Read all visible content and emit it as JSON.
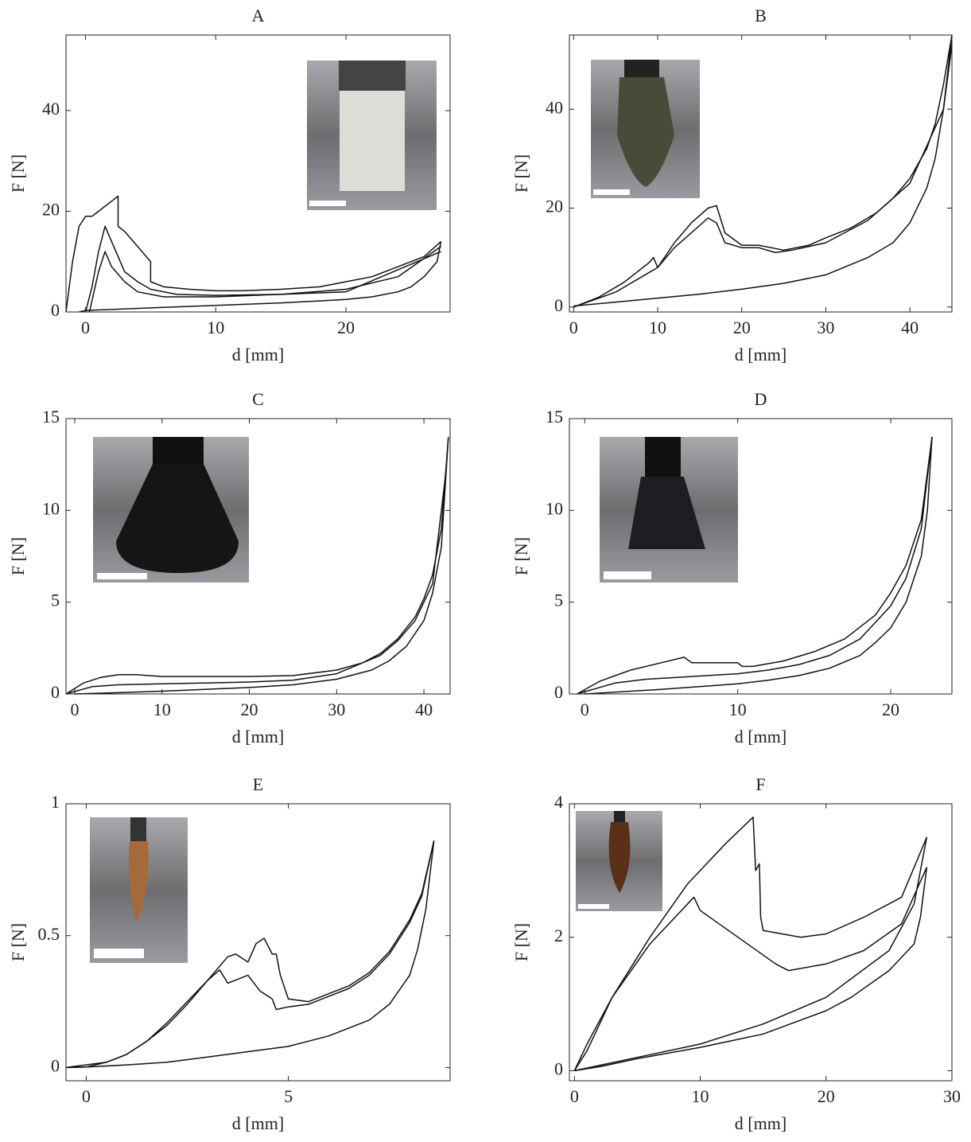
{
  "chart_data": [
    {
      "type": "line",
      "title": "A",
      "x_label": "d [mm]",
      "y_label": "F [N]",
      "color": "#111111",
      "xlim": [
        -1.5,
        28
      ],
      "ylim": [
        0,
        55
      ],
      "xticks": [
        0,
        10,
        20
      ],
      "yticks": [
        0,
        20,
        40
      ],
      "series": [
        {
          "x": [
            -1.5,
            -1,
            -0.5,
            0,
            0.5,
            1,
            2,
            2.5,
            2.5,
            3,
            4,
            5,
            5,
            6,
            8,
            10,
            12,
            15,
            18,
            20,
            22,
            24,
            26,
            27.3
          ],
          "values": [
            0,
            10,
            17,
            19,
            19,
            20,
            22,
            23,
            17,
            16,
            13,
            10,
            6,
            5,
            4.5,
            4.2,
            4.2,
            4.5,
            5,
            6,
            7,
            9,
            11,
            14
          ]
        },
        {
          "x": [
            27.3,
            27,
            26,
            25,
            24,
            22,
            20,
            18,
            15,
            10,
            5,
            0,
            -0.5
          ],
          "values": [
            14,
            10,
            7,
            5,
            4,
            3,
            2.5,
            2.2,
            1.8,
            1.3,
            0.8,
            0.3,
            0
          ]
        },
        {
          "x": [
            0,
            0.5,
            1,
            1.5,
            2,
            3,
            4,
            5,
            7,
            10,
            15,
            20,
            24,
            27.3
          ],
          "values": [
            0,
            5,
            12,
            17,
            14,
            8,
            6,
            4.5,
            3.5,
            3.3,
            3.5,
            4.5,
            7,
            13
          ]
        },
        {
          "x": [
            0.3,
            1,
            1.5,
            2,
            3,
            4,
            6,
            10,
            20,
            27.3
          ],
          "values": [
            0,
            8,
            12,
            9,
            6,
            4,
            3,
            3,
            4,
            12
          ]
        }
      ]
    },
    {
      "type": "line",
      "title": "B",
      "x_label": "d [mm]",
      "y_label": "F [N]",
      "color": "#111111",
      "xlim": [
        -0.5,
        45
      ],
      "ylim": [
        -1,
        55
      ],
      "xticks": [
        0,
        10,
        20,
        30,
        40
      ],
      "yticks": [
        0,
        20,
        40
      ],
      "series": [
        {
          "x": [
            0,
            3,
            6,
            9,
            9.5,
            10,
            12,
            14,
            16,
            17,
            18,
            20,
            22,
            25,
            28,
            30,
            33,
            36,
            38,
            40,
            42,
            43,
            44,
            45
          ],
          "values": [
            0,
            2,
            5,
            9,
            10,
            8,
            13,
            17,
            20,
            20.5,
            15,
            12.5,
            12.5,
            11.5,
            12.5,
            14,
            16,
            19,
            22,
            26,
            32,
            37,
            45,
            55
          ]
        },
        {
          "x": [
            0,
            5,
            9,
            10,
            12,
            14,
            16,
            17,
            18,
            20,
            22,
            24,
            26,
            30,
            35,
            40,
            44,
            45
          ],
          "values": [
            0,
            3,
            7,
            8,
            12,
            15,
            18,
            17,
            13,
            12,
            12,
            11,
            11.5,
            13,
            17.5,
            25,
            40,
            53
          ]
        },
        {
          "x": [
            45,
            44,
            43,
            42,
            40,
            38,
            35,
            30,
            25,
            20,
            15,
            10,
            5,
            0
          ],
          "values": [
            55,
            40,
            30,
            24,
            17,
            13,
            10,
            6.5,
            4.8,
            3.6,
            2.6,
            1.8,
            1,
            0.2
          ]
        }
      ]
    },
    {
      "type": "line",
      "title": "C",
      "x_label": "d [mm]",
      "y_label": "F [N]",
      "color": "#111111",
      "xlim": [
        -1,
        43
      ],
      "ylim": [
        0,
        15
      ],
      "xticks": [
        0,
        10,
        20,
        30,
        40
      ],
      "yticks": [
        0,
        5,
        10,
        15
      ],
      "series": [
        {
          "x": [
            -1,
            1,
            3,
            5,
            7,
            10,
            15,
            20,
            25,
            30,
            33,
            35,
            37,
            39,
            40,
            41,
            42,
            42.8
          ],
          "values": [
            0,
            0.6,
            0.9,
            1.05,
            1.05,
            0.95,
            0.95,
            0.95,
            1,
            1.3,
            1.7,
            2.2,
            3,
            4.2,
            5.2,
            6.5,
            9,
            14
          ]
        },
        {
          "x": [
            -1,
            2,
            5,
            10,
            15,
            20,
            25,
            30,
            35,
            37,
            39,
            41,
            42.5
          ],
          "values": [
            0,
            0.4,
            0.5,
            0.55,
            0.6,
            0.65,
            0.75,
            1.1,
            2.1,
            2.9,
            4,
            6,
            12
          ]
        },
        {
          "x": [
            42.8,
            42,
            41,
            40,
            38,
            36,
            34,
            30,
            25,
            20,
            10,
            5,
            0
          ],
          "values": [
            14,
            8,
            5.5,
            4,
            2.6,
            1.8,
            1.3,
            0.8,
            0.5,
            0.35,
            0.15,
            0.07,
            0
          ]
        }
      ]
    },
    {
      "type": "line",
      "title": "D",
      "x_label": "d [mm]",
      "y_label": "F [N]",
      "color": "#111111",
      "xlim": [
        -1,
        24
      ],
      "ylim": [
        0,
        15
      ],
      "xticks": [
        0,
        10,
        20
      ],
      "yticks": [
        0,
        5,
        10,
        15
      ],
      "series": [
        {
          "x": [
            -0.5,
            1,
            3,
            5,
            6.5,
            7,
            10,
            10.3,
            11,
            13,
            15,
            17,
            19,
            20,
            21,
            22,
            22.7
          ],
          "values": [
            0,
            0.7,
            1.3,
            1.7,
            2,
            1.7,
            1.7,
            1.5,
            1.5,
            1.8,
            2.3,
            3,
            4.3,
            5.5,
            7,
            9.5,
            14
          ]
        },
        {
          "x": [
            -0.5,
            2,
            4,
            6,
            8,
            10,
            12,
            14,
            16,
            18,
            20,
            21,
            22,
            22.7
          ],
          "values": [
            0,
            0.6,
            0.8,
            0.9,
            1,
            1.1,
            1.3,
            1.6,
            2.1,
            3,
            4.8,
            6.3,
            9,
            14
          ]
        },
        {
          "x": [
            22.7,
            22.4,
            22,
            21,
            20,
            19,
            18,
            16,
            14,
            12,
            10,
            5,
            0
          ],
          "values": [
            14,
            10,
            7.5,
            5,
            3.6,
            2.8,
            2.1,
            1.4,
            1,
            0.75,
            0.55,
            0.25,
            0
          ]
        }
      ]
    },
    {
      "type": "line",
      "title": "E",
      "x_label": "d [mm]",
      "y_label": "F [N]",
      "color": "#111111",
      "xlim": [
        -0.5,
        9
      ],
      "ylim": [
        -0.05,
        1
      ],
      "xticks": [
        0,
        5
      ],
      "yticks": [
        0,
        0.5,
        1
      ],
      "series": [
        {
          "x": [
            -0.5,
            0,
            0.5,
            1,
            1.5,
            2,
            2.5,
            3,
            3.5,
            3.7,
            4,
            4.2,
            4.4,
            4.6,
            4.7,
            4.8,
            5,
            5.5,
            6,
            6.5,
            7,
            7.5,
            8,
            8.3,
            8.6
          ],
          "values": [
            0,
            0.002,
            0.02,
            0.05,
            0.1,
            0.17,
            0.25,
            0.33,
            0.42,
            0.43,
            0.4,
            0.47,
            0.49,
            0.43,
            0.43,
            0.35,
            0.26,
            0.25,
            0.28,
            0.31,
            0.36,
            0.44,
            0.56,
            0.66,
            0.86
          ]
        },
        {
          "x": [
            -0.5,
            0.5,
            1,
            1.5,
            2,
            2.5,
            3,
            3.3,
            3.5,
            4,
            4.3,
            4.6,
            4.7,
            5,
            5.5,
            6,
            6.5,
            7,
            7.5,
            8,
            8.3,
            8.6
          ],
          "values": [
            0,
            0.02,
            0.05,
            0.1,
            0.16,
            0.24,
            0.33,
            0.37,
            0.32,
            0.35,
            0.29,
            0.26,
            0.22,
            0.23,
            0.24,
            0.27,
            0.3,
            0.35,
            0.43,
            0.55,
            0.65,
            0.86
          ]
        },
        {
          "x": [
            8.6,
            8.4,
            8.2,
            8,
            7.5,
            7,
            6,
            5,
            4,
            3,
            2,
            1,
            0,
            -0.5
          ],
          "values": [
            0.86,
            0.6,
            0.45,
            0.35,
            0.24,
            0.18,
            0.12,
            0.08,
            0.06,
            0.04,
            0.02,
            0.01,
            0.002,
            0
          ]
        }
      ]
    },
    {
      "type": "line",
      "title": "F",
      "x_label": "d [mm]",
      "y_label": "F [N]",
      "color": "#111111",
      "xlim": [
        -0.4,
        30
      ],
      "ylim": [
        -0.15,
        4
      ],
      "xticks": [
        0,
        10,
        20,
        30
      ],
      "yticks": [
        0,
        2,
        4
      ],
      "series": [
        {
          "x": [
            0,
            1,
            3,
            6,
            9,
            12,
            14.2,
            14.4,
            14.7,
            14.8,
            15,
            18,
            20,
            23,
            26,
            28
          ],
          "values": [
            0,
            0.3,
            1.1,
            2,
            2.8,
            3.4,
            3.8,
            3,
            3.1,
            2.3,
            2.1,
            2,
            2.05,
            2.3,
            2.6,
            3.5
          ]
        },
        {
          "x": [
            0,
            1,
            3,
            6,
            9,
            9.5,
            10,
            13,
            16,
            17,
            20,
            23,
            26,
            28
          ],
          "values": [
            0,
            0.4,
            1.1,
            1.9,
            2.5,
            2.6,
            2.4,
            2,
            1.6,
            1.5,
            1.6,
            1.8,
            2.2,
            3.05
          ]
        },
        {
          "x": [
            28,
            27.5,
            27,
            25,
            22,
            20,
            15,
            10,
            5,
            2,
            0
          ],
          "values": [
            3.05,
            2.3,
            1.9,
            1.5,
            1.1,
            0.9,
            0.55,
            0.35,
            0.18,
            0.06,
            0
          ]
        },
        {
          "x": [
            28,
            27,
            25,
            20,
            15,
            10,
            5,
            0
          ],
          "values": [
            3.5,
            2.5,
            1.8,
            1.1,
            0.7,
            0.4,
            0.2,
            0
          ]
        }
      ]
    }
  ]
}
